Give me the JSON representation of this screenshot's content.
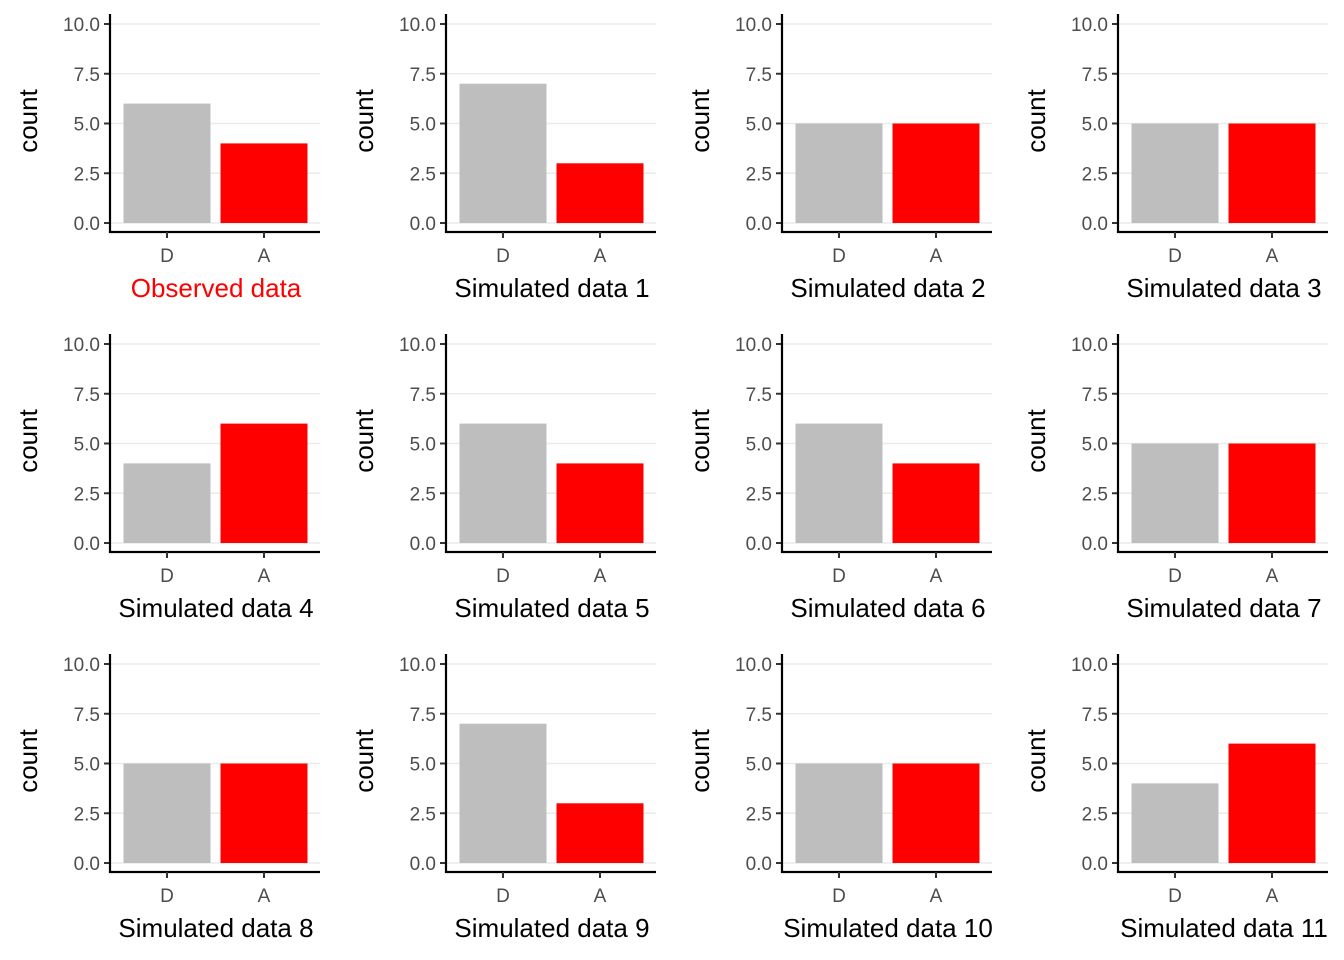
{
  "chart_data": [
    {
      "type": "bar",
      "categories": [
        "D",
        "A"
      ],
      "values": [
        6,
        4
      ],
      "xlabel": "Observed data",
      "ylabel": "count",
      "ylim": [
        0,
        10
      ],
      "yticks": [
        "0.0",
        "2.5",
        "5.0",
        "7.5",
        "10.0"
      ],
      "highlight": true
    },
    {
      "type": "bar",
      "categories": [
        "D",
        "A"
      ],
      "values": [
        7,
        3
      ],
      "xlabel": "Simulated data 1",
      "ylabel": "count",
      "ylim": [
        0,
        10
      ],
      "yticks": [
        "0.0",
        "2.5",
        "5.0",
        "7.5",
        "10.0"
      ],
      "highlight": false
    },
    {
      "type": "bar",
      "categories": [
        "D",
        "A"
      ],
      "values": [
        5,
        5
      ],
      "xlabel": "Simulated data 2",
      "ylabel": "count",
      "ylim": [
        0,
        10
      ],
      "yticks": [
        "0.0",
        "2.5",
        "5.0",
        "7.5",
        "10.0"
      ],
      "highlight": false
    },
    {
      "type": "bar",
      "categories": [
        "D",
        "A"
      ],
      "values": [
        5,
        5
      ],
      "xlabel": "Simulated data 3",
      "ylabel": "count",
      "ylim": [
        0,
        10
      ],
      "yticks": [
        "0.0",
        "2.5",
        "5.0",
        "7.5",
        "10.0"
      ],
      "highlight": false
    },
    {
      "type": "bar",
      "categories": [
        "D",
        "A"
      ],
      "values": [
        4,
        6
      ],
      "xlabel": "Simulated data 4",
      "ylabel": "count",
      "ylim": [
        0,
        10
      ],
      "yticks": [
        "0.0",
        "2.5",
        "5.0",
        "7.5",
        "10.0"
      ],
      "highlight": false
    },
    {
      "type": "bar",
      "categories": [
        "D",
        "A"
      ],
      "values": [
        6,
        4
      ],
      "xlabel": "Simulated data 5",
      "ylabel": "count",
      "ylim": [
        0,
        10
      ],
      "yticks": [
        "0.0",
        "2.5",
        "5.0",
        "7.5",
        "10.0"
      ],
      "highlight": false
    },
    {
      "type": "bar",
      "categories": [
        "D",
        "A"
      ],
      "values": [
        6,
        4
      ],
      "xlabel": "Simulated data 6",
      "ylabel": "count",
      "ylim": [
        0,
        10
      ],
      "yticks": [
        "0.0",
        "2.5",
        "5.0",
        "7.5",
        "10.0"
      ],
      "highlight": false
    },
    {
      "type": "bar",
      "categories": [
        "D",
        "A"
      ],
      "values": [
        5,
        5
      ],
      "xlabel": "Simulated data 7",
      "ylabel": "count",
      "ylim": [
        0,
        10
      ],
      "yticks": [
        "0.0",
        "2.5",
        "5.0",
        "7.5",
        "10.0"
      ],
      "highlight": false
    },
    {
      "type": "bar",
      "categories": [
        "D",
        "A"
      ],
      "values": [
        5,
        5
      ],
      "xlabel": "Simulated data 8",
      "ylabel": "count",
      "ylim": [
        0,
        10
      ],
      "yticks": [
        "0.0",
        "2.5",
        "5.0",
        "7.5",
        "10.0"
      ],
      "highlight": false
    },
    {
      "type": "bar",
      "categories": [
        "D",
        "A"
      ],
      "values": [
        7,
        3
      ],
      "xlabel": "Simulated data 9",
      "ylabel": "count",
      "ylim": [
        0,
        10
      ],
      "yticks": [
        "0.0",
        "2.5",
        "5.0",
        "7.5",
        "10.0"
      ],
      "highlight": false
    },
    {
      "type": "bar",
      "categories": [
        "D",
        "A"
      ],
      "values": [
        5,
        5
      ],
      "xlabel": "Simulated data 10",
      "ylabel": "count",
      "ylim": [
        0,
        10
      ],
      "yticks": [
        "0.0",
        "2.5",
        "5.0",
        "7.5",
        "10.0"
      ],
      "highlight": false
    },
    {
      "type": "bar",
      "categories": [
        "D",
        "A"
      ],
      "values": [
        4,
        6
      ],
      "xlabel": "Simulated data 11",
      "ylabel": "count",
      "ylim": [
        0,
        10
      ],
      "yticks": [
        "0.0",
        "2.5",
        "5.0",
        "7.5",
        "10.0"
      ],
      "highlight": false
    }
  ],
  "colors": {
    "bar_D": "#bebebe",
    "bar_A": "#ff0000",
    "title_observed": "#ff0000",
    "title_simulated": "#000000"
  }
}
